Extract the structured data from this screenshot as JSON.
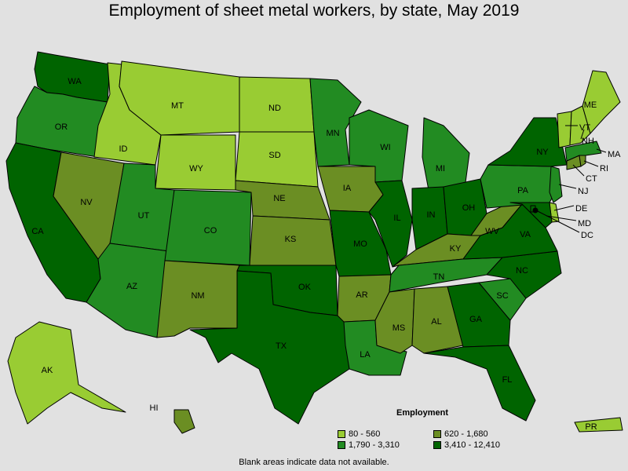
{
  "title": "Employment of sheet metal workers, by state, May 2019",
  "legend": {
    "title": "Employment",
    "items": [
      {
        "range": "80 - 560",
        "color": "#99cc33"
      },
      {
        "range": "620 - 1,680",
        "color": "#6b8e23"
      },
      {
        "range": "1,790 - 3,310",
        "color": "#228b22"
      },
      {
        "range": "3,410 - 12,410",
        "color": "#006400"
      }
    ]
  },
  "footnote": "Blank areas indicate data not available.",
  "colors": {
    "background": "#e1e1e1",
    "class1": "#99cc33",
    "class2": "#6b8e23",
    "class3": "#228b22",
    "class4": "#006400"
  },
  "states": [
    {
      "abbr": "WA",
      "class": 4
    },
    {
      "abbr": "OR",
      "class": 3
    },
    {
      "abbr": "CA",
      "class": 4
    },
    {
      "abbr": "ID",
      "class": 1
    },
    {
      "abbr": "NV",
      "class": 2
    },
    {
      "abbr": "MT",
      "class": 1
    },
    {
      "abbr": "WY",
      "class": 1
    },
    {
      "abbr": "UT",
      "class": 3
    },
    {
      "abbr": "AZ",
      "class": 3
    },
    {
      "abbr": "CO",
      "class": 3
    },
    {
      "abbr": "NM",
      "class": 2
    },
    {
      "abbr": "ND",
      "class": 1
    },
    {
      "abbr": "SD",
      "class": 1
    },
    {
      "abbr": "NE",
      "class": 2
    },
    {
      "abbr": "KS",
      "class": 2
    },
    {
      "abbr": "OK",
      "class": 4
    },
    {
      "abbr": "TX",
      "class": 4
    },
    {
      "abbr": "MN",
      "class": 3
    },
    {
      "abbr": "IA",
      "class": 2
    },
    {
      "abbr": "MO",
      "class": 4
    },
    {
      "abbr": "AR",
      "class": 2
    },
    {
      "abbr": "LA",
      "class": 3
    },
    {
      "abbr": "WI",
      "class": 3
    },
    {
      "abbr": "IL",
      "class": 4
    },
    {
      "abbr": "MI",
      "class": 3
    },
    {
      "abbr": "IN",
      "class": 4
    },
    {
      "abbr": "OH",
      "class": 4
    },
    {
      "abbr": "KY",
      "class": 2
    },
    {
      "abbr": "TN",
      "class": 3
    },
    {
      "abbr": "MS",
      "class": 2
    },
    {
      "abbr": "AL",
      "class": 2
    },
    {
      "abbr": "GA",
      "class": 4
    },
    {
      "abbr": "FL",
      "class": 4
    },
    {
      "abbr": "SC",
      "class": 3
    },
    {
      "abbr": "NC",
      "class": 4
    },
    {
      "abbr": "VA",
      "class": 4
    },
    {
      "abbr": "WV",
      "class": 2
    },
    {
      "abbr": "PA",
      "class": 3
    },
    {
      "abbr": "NY",
      "class": 4
    },
    {
      "abbr": "NJ",
      "class": 3
    },
    {
      "abbr": "DE",
      "class": 1
    },
    {
      "abbr": "MD",
      "class": 4
    },
    {
      "abbr": "DC",
      "class": 4
    },
    {
      "abbr": "CT",
      "class": 2
    },
    {
      "abbr": "RI",
      "class": 2
    },
    {
      "abbr": "MA",
      "class": 3
    },
    {
      "abbr": "VT",
      "class": 1
    },
    {
      "abbr": "NH",
      "class": 1
    },
    {
      "abbr": "ME",
      "class": 1
    },
    {
      "abbr": "AK",
      "class": 1
    },
    {
      "abbr": "HI",
      "class": 2
    },
    {
      "abbr": "PR",
      "class": 1
    }
  ]
}
